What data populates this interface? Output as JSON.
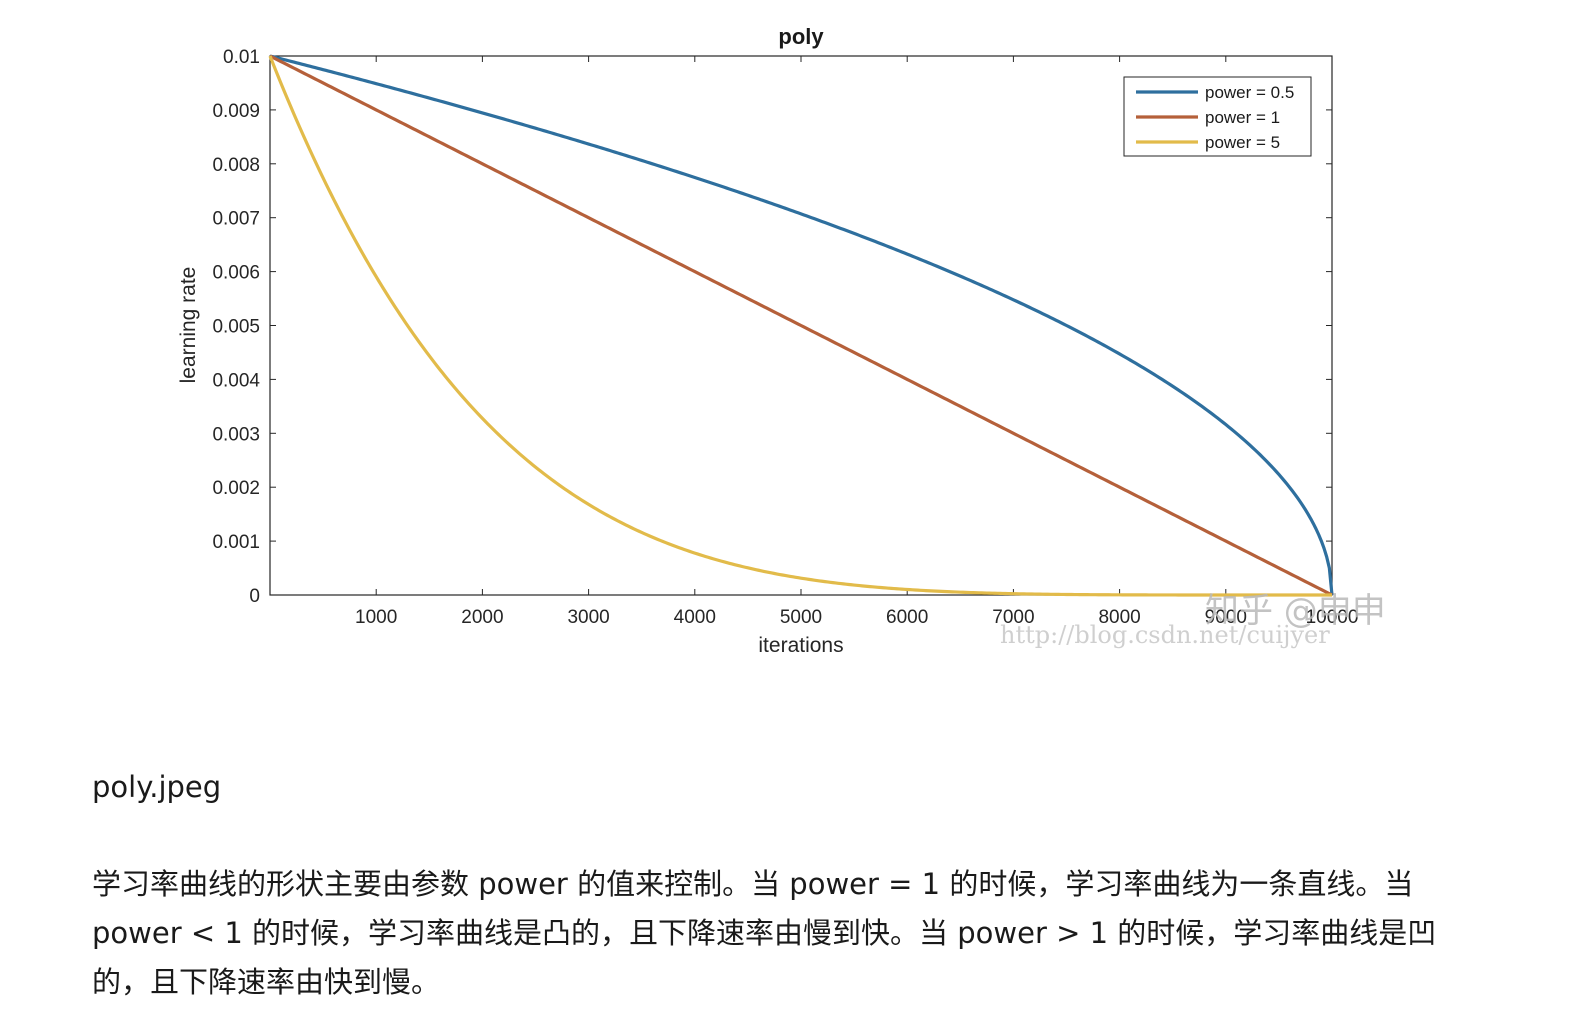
{
  "chart_data": {
    "type": "line",
    "title": "poly",
    "xlabel": "iterations",
    "ylabel": "learning rate",
    "xlim": [
      0,
      10000
    ],
    "ylim": [
      0,
      0.01
    ],
    "x_ticks": [
      1000,
      2000,
      3000,
      4000,
      5000,
      6000,
      7000,
      8000,
      9000,
      10000
    ],
    "x_tick_labels": [
      "1000",
      "2000",
      "3000",
      "4000",
      "5000",
      "6000",
      "7000",
      "8000",
      "9000",
      "10000"
    ],
    "y_ticks": [
      0,
      0.001,
      0.002,
      0.003,
      0.004,
      0.005,
      0.006,
      0.007,
      0.008,
      0.009,
      0.01
    ],
    "y_tick_labels": [
      "0",
      "0.001",
      "0.002",
      "0.003",
      "0.004",
      "0.005",
      "0.006",
      "0.007",
      "0.008",
      "0.009",
      "0.01"
    ],
    "grid": false,
    "legend_position": "top-right",
    "base_lr": 0.01,
    "max_iter": 10000,
    "series": [
      {
        "name": "power = 0.5",
        "power": 0.5,
        "color": "#2e6f9e"
      },
      {
        "name": "power = 1",
        "power": 1,
        "color": "#b5603a"
      },
      {
        "name": "power = 5",
        "power": 5,
        "color": "#e2bb4a"
      }
    ]
  },
  "watermark": {
    "brand": "知乎 @申申",
    "url": "http://blog.csdn.net/cuijyer"
  },
  "caption": "poly.jpeg",
  "description": "学习率曲线的形状主要由参数 power 的值来控制。当 power = 1 的时候，学习率曲线为一条直线。当 power < 1 的时候，学习率曲线是凸的，且下降速率由慢到快。当 power > 1 的时候，学习率曲线是凹的，且下降速率由快到慢。"
}
